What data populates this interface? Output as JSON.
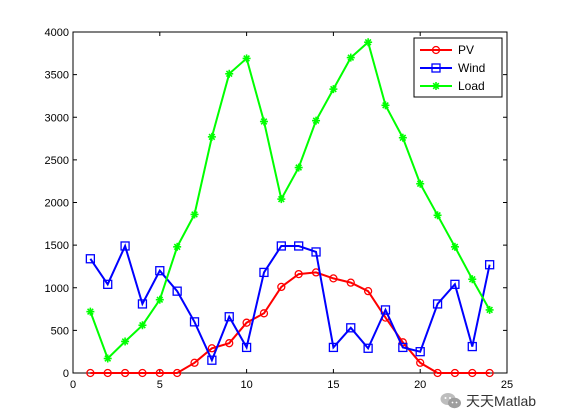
{
  "chart_data": {
    "type": "line",
    "title": "",
    "xlabel": "",
    "ylabel": "",
    "xlim": [
      0,
      25
    ],
    "ylim": [
      0,
      4000
    ],
    "xticks": [
      0,
      5,
      10,
      15,
      20,
      25
    ],
    "yticks": [
      0,
      500,
      1000,
      1500,
      2000,
      2500,
      3000,
      3500,
      4000
    ],
    "xtick_labels": [
      "0",
      "5",
      "10",
      "15",
      "20",
      "25"
    ],
    "ytick_labels": [
      "0",
      "500",
      "1000",
      "1500",
      "2000",
      "2500",
      "3000",
      "3500",
      "4000"
    ],
    "grid": false,
    "legend_position": "top-right",
    "x": [
      1,
      2,
      3,
      4,
      5,
      6,
      7,
      8,
      9,
      10,
      11,
      12,
      13,
      14,
      15,
      16,
      17,
      18,
      19,
      20,
      21,
      22,
      23,
      24
    ],
    "series": [
      {
        "name": "PV",
        "color": "#ff0000",
        "marker": "circle",
        "values": [
          0,
          0,
          0,
          0,
          0,
          0,
          120,
          290,
          350,
          590,
          700,
          1010,
          1160,
          1180,
          1110,
          1060,
          960,
          650,
          360,
          120,
          0,
          0,
          0,
          0
        ]
      },
      {
        "name": "Wind",
        "color": "#0000ff",
        "marker": "square",
        "values": [
          1340,
          1040,
          1490,
          810,
          1200,
          960,
          600,
          150,
          660,
          300,
          1180,
          1490,
          1490,
          1420,
          300,
          530,
          290,
          740,
          300,
          250,
          810,
          1040,
          310,
          1270
        ]
      },
      {
        "name": "Load",
        "color": "#00ff00",
        "marker": "star",
        "values": [
          720,
          170,
          370,
          560,
          860,
          1480,
          1860,
          2770,
          3510,
          3690,
          2950,
          2040,
          2410,
          2960,
          3330,
          3700,
          3880,
          3140,
          2760,
          2220,
          1850,
          1480,
          1100,
          740
        ]
      }
    ]
  },
  "watermark": {
    "text": "天天Matlab",
    "icon": "wechat-icon"
  }
}
